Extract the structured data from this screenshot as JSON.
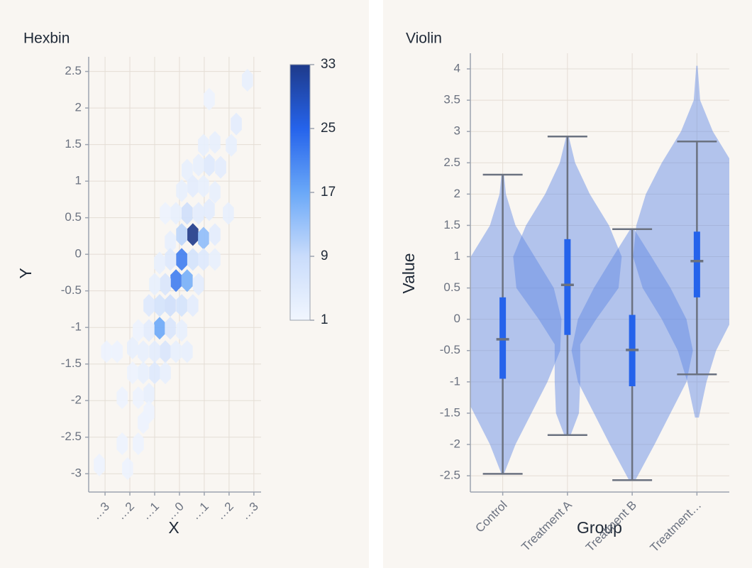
{
  "chart_data": [
    {
      "type": "hexbin",
      "title": "Hexbin",
      "x_label": "X",
      "y_label": "Y",
      "xlim": [
        -3.66,
        3.29
      ],
      "ylim": [
        -3.25,
        2.7
      ],
      "xticks": [
        {
          "value": -3,
          "label": "…3"
        },
        {
          "value": -2,
          "label": "…2"
        },
        {
          "value": -1,
          "label": "…1"
        },
        {
          "value": 0,
          "label": "…0"
        },
        {
          "value": 1,
          "label": "…1"
        },
        {
          "value": 2,
          "label": "…2"
        },
        {
          "value": 3,
          "label": "…3"
        }
      ],
      "yticks": [
        -3,
        -2.5,
        -2,
        -1.5,
        -1,
        -0.5,
        0,
        0.5,
        1,
        1.5,
        2,
        2.5
      ],
      "grid": true,
      "x": [
        2.74,
        1.2,
        2.29,
        2.09,
        0.97,
        1.43,
        1.2,
        1.66,
        0.77,
        0.31,
        0.54,
        0.97,
        1.43,
        0.09,
        1.2,
        0.31,
        0.77,
        -0.14,
        -0.57,
        1.97,
        0.54,
        0.09,
        0.97,
        1.43,
        -0.37,
        0.09,
        0.54,
        -0.37,
        -0.8,
        1.43,
        0.97,
        -0.14,
        0.31,
        -0.57,
        0.77,
        -1,
        0.09,
        -0.37,
        -0.8,
        -1.23,
        0.54,
        -0.8,
        -0.37,
        -1.23,
        0.09,
        -1.66,
        -0.57,
        -1,
        -1.46,
        -1.89,
        -0.14,
        0.31,
        -2.51,
        -2.94,
        -1,
        -1.46,
        -0.57,
        -1.89,
        -1.23,
        -2.31,
        -1.66,
        -1.23,
        -1.46,
        -1.66,
        -2.31,
        -2.09,
        -3.23
      ],
      "y": [
        2.38,
        2.12,
        1.78,
        1.49,
        1.49,
        1.53,
        1.22,
        1.19,
        1.22,
        1.15,
        0.93,
        0.93,
        0.85,
        0.87,
        0.61,
        0.56,
        0.56,
        0.56,
        0.56,
        0.56,
        0.27,
        0.27,
        0.22,
        0.27,
        0.17,
        -0.07,
        -0.07,
        -0.07,
        -0.12,
        -0.07,
        -0.07,
        -0.36,
        -0.36,
        -0.41,
        -0.41,
        -0.41,
        -0.7,
        -0.7,
        -0.7,
        -0.7,
        -0.7,
        -1.01,
        -1.01,
        -1.04,
        -1.04,
        -1.04,
        -1.33,
        -1.33,
        -1.33,
        -1.28,
        -1.33,
        -1.33,
        -1.33,
        -1.33,
        -1.62,
        -1.62,
        -1.62,
        -1.62,
        -1.91,
        -1.96,
        -1.96,
        -2.16,
        -2.3,
        -2.59,
        -2.59,
        -2.93,
        -2.88
      ],
      "counts": [
        3,
        2,
        4,
        3,
        3,
        3,
        5,
        4,
        3,
        3,
        4,
        3,
        3,
        3,
        4,
        8,
        4,
        3,
        2,
        3,
        33,
        10,
        14,
        4,
        3,
        22,
        7,
        5,
        3,
        3,
        5,
        22,
        16,
        6,
        4,
        3,
        7,
        8,
        7,
        5,
        4,
        17,
        6,
        4,
        3,
        2,
        6,
        4,
        3,
        3,
        3,
        3,
        2,
        2,
        5,
        3,
        3,
        2,
        3,
        2,
        2,
        2,
        2,
        2,
        2,
        2,
        2
      ],
      "clim": [
        1,
        33
      ],
      "cticks": [
        1,
        9,
        17,
        25,
        33
      ],
      "colorscale": [
        "#f1f6fe",
        "#c9dcfb",
        "#6aa8f8",
        "#2563eb",
        "#1e3a8a"
      ]
    },
    {
      "type": "violin",
      "title": "Violin",
      "x_label": "Group",
      "y_label": "Value",
      "categories": [
        "Control",
        "Treatment A",
        "Treatment B",
        "Treatment…"
      ],
      "ylim": [
        -2.76,
        4.25
      ],
      "yticks": [
        -2.5,
        -2,
        -1.5,
        -1,
        -0.5,
        0,
        0.5,
        1,
        1.5,
        2,
        2.5,
        3,
        3.5,
        4
      ],
      "grid": true,
      "color": "#5b86e5",
      "box_color": "#2563eb",
      "whisker_color": "#6b7280",
      "violins": [
        {
          "min": -2.47,
          "q1": -0.95,
          "median": -0.32,
          "q3": 0.35,
          "max": 2.31,
          "density_y": [
            -2.47,
            -2,
            -1.5,
            -1,
            -0.5,
            0,
            0.5,
            1,
            1.5,
            2,
            2.31
          ],
          "density": [
            0.02,
            0.2,
            0.45,
            0.7,
            0.9,
            0.92,
            0.8,
            0.5,
            0.2,
            0.05,
            0.02
          ]
        },
        {
          "min": -1.85,
          "q1": -0.25,
          "median": 0.55,
          "q3": 1.28,
          "max": 2.92,
          "density_y": [
            -1.85,
            -1.5,
            -1,
            -0.4,
            0,
            0.5,
            1,
            1.5,
            2,
            2.5,
            2.92
          ],
          "density": [
            0.05,
            0.18,
            0.2,
            0.2,
            0.45,
            0.8,
            0.85,
            0.65,
            0.35,
            0.12,
            0.02
          ]
        },
        {
          "min": -2.57,
          "q1": -1.07,
          "median": -0.49,
          "q3": 0.07,
          "max": 1.44,
          "density_y": [
            -2.57,
            -2,
            -1.5,
            -1,
            -0.5,
            0,
            0.5,
            1,
            1.44
          ],
          "density": [
            0.05,
            0.35,
            0.6,
            0.85,
            0.95,
            0.85,
            0.6,
            0.3,
            0.03
          ]
        },
        {
          "min": -0.88,
          "q1": 0.35,
          "median": 0.93,
          "q3": 1.4,
          "max": 2.84,
          "density_y": [
            -1.57,
            -1,
            -0.5,
            0,
            0.5,
            1,
            1.5,
            2,
            2.5,
            3,
            3.5,
            4.05
          ],
          "density": [
            0.03,
            0.15,
            0.3,
            0.55,
            0.85,
            1,
            0.95,
            0.8,
            0.55,
            0.25,
            0.05,
            0.01
          ]
        }
      ]
    }
  ]
}
